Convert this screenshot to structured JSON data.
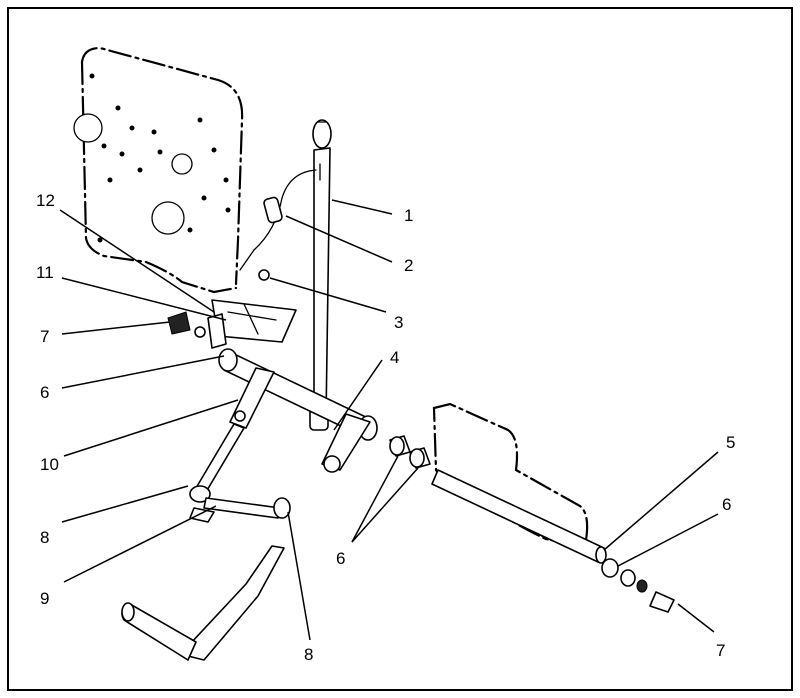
{
  "callouts": [
    {
      "id": "c1",
      "label": "1"
    },
    {
      "id": "c2",
      "label": "2"
    },
    {
      "id": "c3",
      "label": "3"
    },
    {
      "id": "c4",
      "label": "4"
    },
    {
      "id": "c5",
      "label": "5"
    },
    {
      "id": "c6a",
      "label": "6"
    },
    {
      "id": "c6b",
      "label": "6"
    },
    {
      "id": "c6c",
      "label": "6"
    },
    {
      "id": "c7a",
      "label": "7"
    },
    {
      "id": "c7b",
      "label": "7"
    },
    {
      "id": "c8a",
      "label": "8"
    },
    {
      "id": "c8b",
      "label": "8"
    },
    {
      "id": "c9",
      "label": "9"
    },
    {
      "id": "c10",
      "label": "10"
    },
    {
      "id": "c11",
      "label": "11"
    },
    {
      "id": "c12",
      "label": "12"
    }
  ]
}
